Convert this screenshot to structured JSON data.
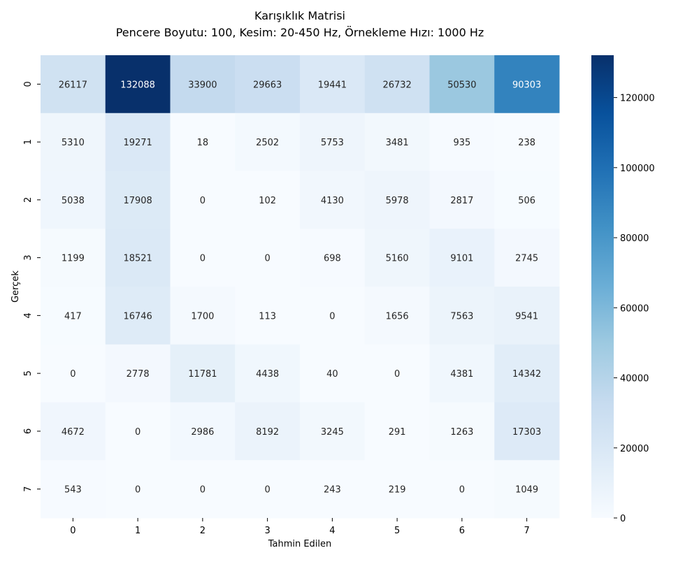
{
  "chart_data": {
    "type": "heatmap",
    "title": "Karışıklık Matrisi",
    "subtitle": "Pencere Boyutu: 100, Kesim: 20-450 Hz, Örnekleme Hızı: 1000 Hz",
    "xlabel": "Tahmin Edilen",
    "ylabel": "Gerçek",
    "x_categories": [
      "0",
      "1",
      "2",
      "3",
      "4",
      "5",
      "6",
      "7"
    ],
    "y_categories": [
      "0",
      "1",
      "2",
      "3",
      "4",
      "5",
      "6",
      "7"
    ],
    "values": [
      [
        26117,
        132088,
        33900,
        29663,
        19441,
        26732,
        50530,
        90303
      ],
      [
        5310,
        19271,
        18,
        2502,
        5753,
        3481,
        935,
        238
      ],
      [
        5038,
        17908,
        0,
        102,
        4130,
        5978,
        2817,
        506
      ],
      [
        1199,
        18521,
        0,
        0,
        698,
        5160,
        9101,
        2745
      ],
      [
        417,
        16746,
        1700,
        113,
        0,
        1656,
        7563,
        9541
      ],
      [
        0,
        2778,
        11781,
        4438,
        40,
        0,
        4381,
        14342
      ],
      [
        4672,
        0,
        2986,
        8192,
        3245,
        291,
        1263,
        17303
      ],
      [
        543,
        0,
        0,
        0,
        243,
        219,
        0,
        1049
      ]
    ],
    "colormap": "Blues",
    "vmin": 0,
    "vmax": 132088,
    "colorbar_ticks": [
      0,
      20000,
      40000,
      60000,
      80000,
      100000,
      120000
    ],
    "colorbar_tick_labels": [
      "0",
      "20000",
      "40000",
      "60000",
      "80000",
      "100000",
      "120000"
    ],
    "annotations": true,
    "grid": false,
    "legend": "colorbar-right"
  }
}
